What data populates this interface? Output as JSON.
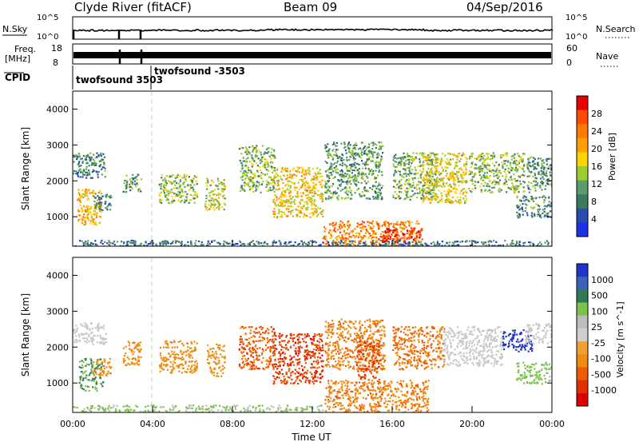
{
  "header": {
    "station": "Clyde River (fitACF)",
    "beam": "Beam 09",
    "date": "04/Sep/2016"
  },
  "colors": {
    "power": [
      "#1a33e6",
      "#2a4bb0",
      "#3b7a5c",
      "#5a9c6a",
      "#9ccc2e",
      "#ffd200",
      "#ffa000",
      "#ff7a00",
      "#ff4a00",
      "#e60000"
    ],
    "velocity": [
      "#2233cc",
      "#3a62b8",
      "#2e7a55",
      "#7dc24a",
      "#bdbdbd",
      "#cfcfcf",
      "#f0a030",
      "#f08a10",
      "#f05a00",
      "#e03000",
      "#e00000"
    ],
    "ground_scatter": "#c8c8c8"
  },
  "chart_data": [
    {
      "type": "line",
      "panel": "nsky-nsearch",
      "left_label": "N.Sky",
      "right_label": "N.Search",
      "left_ticks": [
        "10^5",
        "10^0"
      ],
      "right_ticks": [
        "10^5",
        "10^0"
      ],
      "series": [
        {
          "name": "N.Sky",
          "style": "solid"
        },
        {
          "name": "N.Search",
          "style": "dotted"
        }
      ]
    },
    {
      "type": "line",
      "panel": "freq-nave",
      "left_label": "Freq.",
      "left_unit": "[MHz]",
      "right_label": "Nave",
      "left_ticks": [
        "18",
        "8"
      ],
      "right_ticks": [
        "60",
        "0"
      ]
    },
    {
      "type": "table",
      "panel": "cpid",
      "label": "CPID",
      "entries": [
        {
          "time": 0.0,
          "text": "twofsound 3503"
        },
        {
          "time": 3.9,
          "text": "twofsound -3503"
        }
      ]
    },
    {
      "type": "heatmap",
      "panel": "power",
      "ylabel": "Slant Range [km]",
      "ylim": [
        180,
        4500
      ],
      "yticks": [
        "1000",
        "2000",
        "3000",
        "4000"
      ],
      "colorbar_label": "Power [dB]",
      "colorbar_ticks": [
        "4",
        "8",
        "12",
        "16",
        "20",
        "24",
        "28"
      ],
      "clim": [
        0,
        30
      ],
      "regions": [
        {
          "t0": 0.0,
          "t1": 1.6,
          "r0": 2100,
          "r1": 2800,
          "level": 8
        },
        {
          "t0": 0.2,
          "t1": 1.4,
          "r0": 800,
          "r1": 1800,
          "level": 18
        },
        {
          "t0": 1.0,
          "t1": 1.9,
          "r0": 1200,
          "r1": 1700,
          "level": 9
        },
        {
          "t0": 2.5,
          "t1": 3.4,
          "r0": 1700,
          "r1": 2200,
          "level": 10
        },
        {
          "t0": 4.3,
          "t1": 6.2,
          "r0": 1400,
          "r1": 2200,
          "level": 12
        },
        {
          "t0": 6.6,
          "t1": 7.6,
          "r0": 1200,
          "r1": 2100,
          "level": 14
        },
        {
          "t0": 8.3,
          "t1": 10.1,
          "r0": 1700,
          "r1": 3000,
          "level": 12
        },
        {
          "t0": 10.0,
          "t1": 12.5,
          "r0": 1000,
          "r1": 2400,
          "level": 17
        },
        {
          "t0": 12.6,
          "t1": 15.5,
          "r0": 1500,
          "r1": 3100,
          "level": 10
        },
        {
          "t0": 12.5,
          "t1": 17.3,
          "r0": 200,
          "r1": 900,
          "level": 22
        },
        {
          "t0": 15.4,
          "t1": 17.5,
          "r0": 300,
          "r1": 700,
          "level": 27
        },
        {
          "t0": 16.0,
          "t1": 18.2,
          "r0": 1500,
          "r1": 2800,
          "level": 11
        },
        {
          "t0": 17.5,
          "t1": 19.7,
          "r0": 1400,
          "r1": 2800,
          "level": 16
        },
        {
          "t0": 19.8,
          "t1": 22.6,
          "r0": 1700,
          "r1": 2800,
          "level": 12
        },
        {
          "t0": 22.7,
          "t1": 24.0,
          "r0": 1700,
          "r1": 2700,
          "level": 9
        },
        {
          "t0": 22.2,
          "t1": 24.0,
          "r0": 1000,
          "r1": 1600,
          "level": 8
        },
        {
          "t0": 0.0,
          "t1": 24.0,
          "r0": 180,
          "r1": 360,
          "level": 7
        }
      ]
    },
    {
      "type": "heatmap",
      "panel": "velocity",
      "ylabel": "Slant Range [km]",
      "ylim": [
        180,
        4500
      ],
      "yticks": [
        "1000",
        "2000",
        "3000",
        "4000"
      ],
      "xlabel": "Time UT",
      "xticks": [
        "00:00",
        "04:00",
        "08:00",
        "12:00",
        "16:00",
        "20:00",
        "00:00"
      ],
      "xlim": [
        0,
        24
      ],
      "colorbar_label": "Velocity [m s^-1]",
      "colorbar_ticks": [
        "1000",
        "500",
        "100",
        "25",
        "-25",
        "-100",
        "-500",
        "-1000"
      ],
      "regions": [
        {
          "t0": 0.0,
          "t1": 1.7,
          "r0": 2100,
          "r1": 2700,
          "vel": "ground"
        },
        {
          "t0": 0.3,
          "t1": 1.5,
          "r0": 800,
          "r1": 1700,
          "vel": 120
        },
        {
          "t0": 1.0,
          "t1": 1.9,
          "r0": 1200,
          "r1": 1700,
          "vel": -150
        },
        {
          "t0": 2.5,
          "t1": 3.4,
          "r0": 1500,
          "r1": 2200,
          "vel": -200
        },
        {
          "t0": 4.3,
          "t1": 6.2,
          "r0": 1300,
          "r1": 2200,
          "vel": -180
        },
        {
          "t0": 6.7,
          "t1": 7.6,
          "r0": 1200,
          "r1": 2100,
          "vel": -130
        },
        {
          "t0": 8.3,
          "t1": 10.1,
          "r0": 1400,
          "r1": 2600,
          "vel": -400
        },
        {
          "t0": 10.0,
          "t1": 12.5,
          "r0": 1000,
          "r1": 2400,
          "vel": -600
        },
        {
          "t0": 12.6,
          "t1": 15.6,
          "r0": 1400,
          "r1": 2800,
          "vel": -250
        },
        {
          "t0": 12.6,
          "t1": 17.8,
          "r0": 200,
          "r1": 1100,
          "vel": -250
        },
        {
          "t0": 14.2,
          "t1": 15.4,
          "r0": 1100,
          "r1": 2200,
          "vel": -500
        },
        {
          "t0": 16.0,
          "t1": 18.6,
          "r0": 1400,
          "r1": 2600,
          "vel": -300
        },
        {
          "t0": 18.5,
          "t1": 21.5,
          "r0": 1500,
          "r1": 2600,
          "vel": "ground"
        },
        {
          "t0": 21.5,
          "t1": 23.0,
          "r0": 1900,
          "r1": 2500,
          "vel": 800
        },
        {
          "t0": 22.6,
          "t1": 24.0,
          "r0": 2100,
          "r1": 2700,
          "vel": "ground"
        },
        {
          "t0": 22.2,
          "t1": 24.0,
          "r0": 1000,
          "r1": 1600,
          "vel": 60
        },
        {
          "t0": 0.0,
          "t1": 12.5,
          "r0": 180,
          "r1": 400,
          "vel": 40
        }
      ]
    }
  ]
}
